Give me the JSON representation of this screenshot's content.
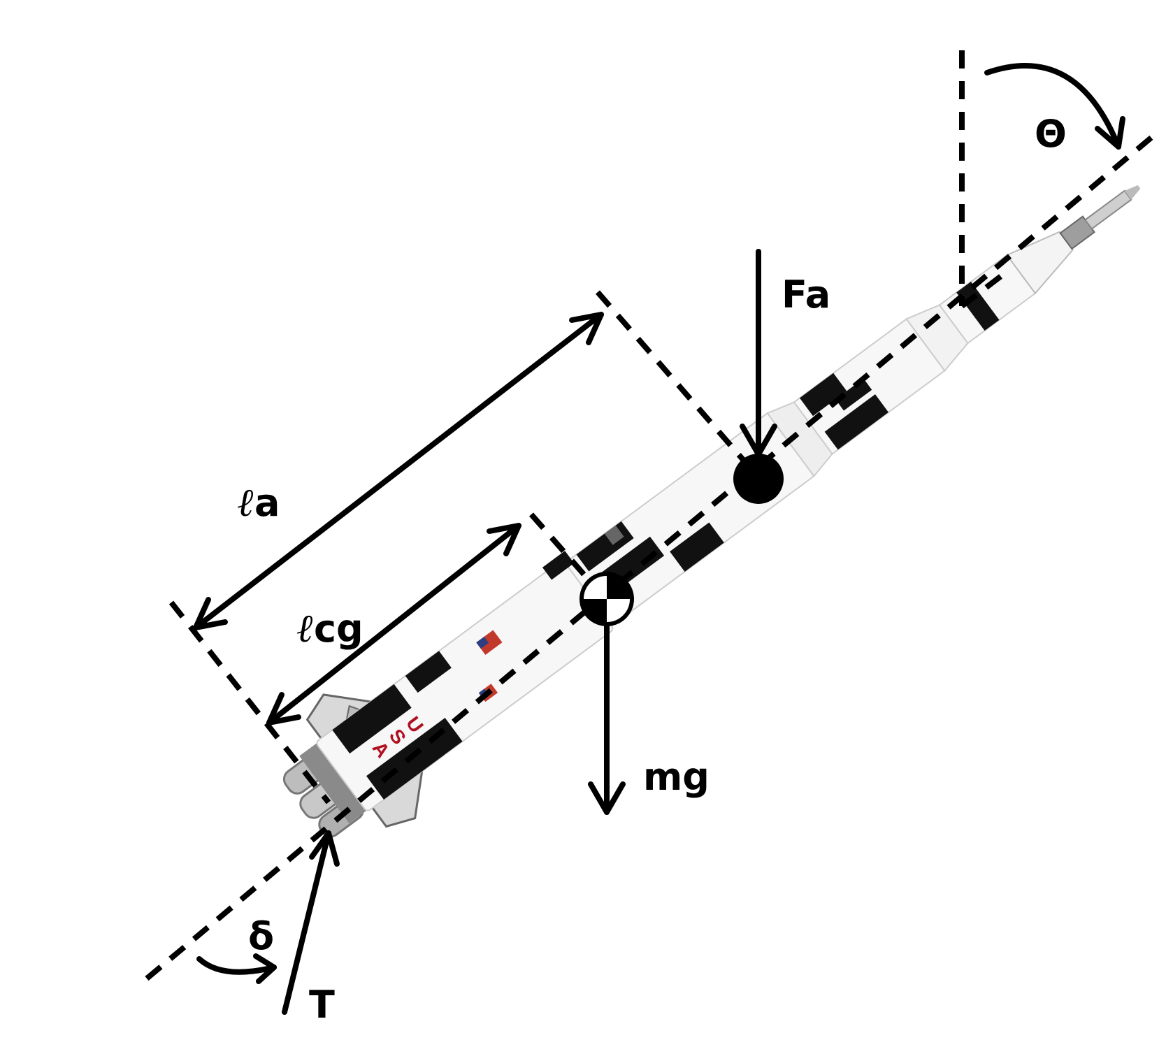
{
  "labels": {
    "theta": "Θ",
    "aero_force": "Fa",
    "length_a_symbol": "ℓ",
    "length_a_suffix": "a",
    "length_cg_symbol": "ℓ",
    "length_cg_suffix": "cg",
    "weight": "mg",
    "gimbal_angle": "δ",
    "thrust": "T"
  },
  "rocket": {
    "markings": [
      "U",
      "S",
      "A"
    ],
    "colors": {
      "body": "#f7f7f7",
      "stripe": "#111111",
      "marking": "#b01020",
      "metal": "#a8a8a8"
    }
  }
}
